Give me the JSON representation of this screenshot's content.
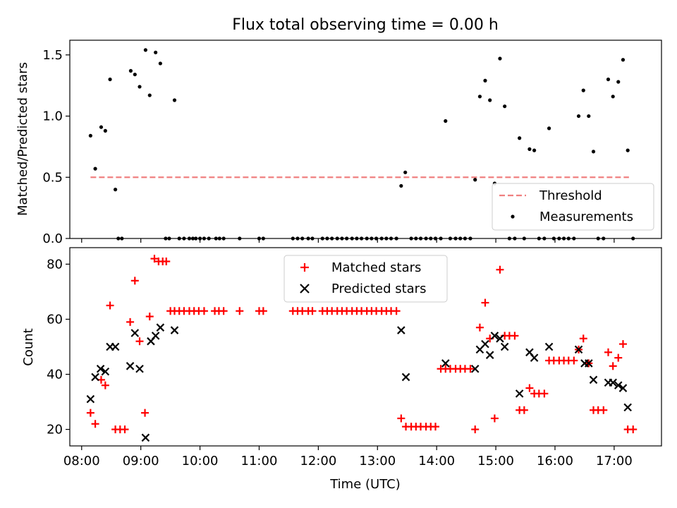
{
  "figure": {
    "title": "Flux total observing time = 0.00 h"
  },
  "chart_data": [
    {
      "type": "scatter",
      "panel": "top",
      "ylabel": "Matched/Predicted stars",
      "xlabel": "",
      "xlim": [
        7.8,
        17.8
      ],
      "ylim": [
        0,
        1.62
      ],
      "yticks": [
        0.0,
        0.5,
        1.0,
        1.5
      ],
      "ytick_labels": [
        "0.0",
        "0.5",
        "1.0",
        "1.5"
      ],
      "xticks": [
        8,
        9,
        10,
        11,
        12,
        13,
        14,
        15,
        16,
        17
      ],
      "grid": false,
      "legend_position": "lower-right",
      "legend": [
        {
          "label": "Threshold",
          "style": "dashed-line",
          "color": "#f08080"
        },
        {
          "label": "Measurements",
          "style": "dot",
          "color": "#000000"
        }
      ],
      "threshold": {
        "x": [
          8.15,
          17.25
        ],
        "y": 0.5,
        "color": "#f08080"
      },
      "series": [
        {
          "name": "Measurements",
          "color": "#000000",
          "marker": "dot",
          "x": [
            8.15,
            8.23,
            8.33,
            8.4,
            8.48,
            8.57,
            8.62,
            8.68,
            8.83,
            8.9,
            8.98,
            9.08,
            9.15,
            9.25,
            9.33,
            9.42,
            9.48,
            9.57,
            9.65,
            9.73,
            9.82,
            9.88,
            9.93,
            10.0,
            10.07,
            10.15,
            10.27,
            10.33,
            10.4,
            10.67,
            11.0,
            11.07,
            11.57,
            11.65,
            11.73,
            11.83,
            11.9,
            12.07,
            12.15,
            12.23,
            12.32,
            12.4,
            12.48,
            12.57,
            12.65,
            12.73,
            12.82,
            12.9,
            12.98,
            13.07,
            13.15,
            13.23,
            13.32,
            13.4,
            13.47,
            13.57,
            13.65,
            13.73,
            13.82,
            13.9,
            13.98,
            14.07,
            14.15,
            14.23,
            14.32,
            14.4,
            14.48,
            14.57,
            14.65,
            14.73,
            14.82,
            14.9,
            14.98,
            15.07,
            15.15,
            15.23,
            15.32,
            15.4,
            15.48,
            15.57,
            15.65,
            15.73,
            15.82,
            15.9,
            15.98,
            16.07,
            16.15,
            16.23,
            16.32,
            16.4,
            16.48,
            16.57,
            16.65,
            16.73,
            16.82,
            16.9,
            16.98,
            17.07,
            17.15,
            17.23,
            17.32
          ],
          "y": [
            0.84,
            0.57,
            0.91,
            0.88,
            1.3,
            0.4,
            0.0,
            0.0,
            1.37,
            1.34,
            1.24,
            1.54,
            1.17,
            1.52,
            1.43,
            0.0,
            0.0,
            1.13,
            0.0,
            0.0,
            0.0,
            0.0,
            0.0,
            0.0,
            0.0,
            0.0,
            0.0,
            0.0,
            0.0,
            0.0,
            0.0,
            0.0,
            0.0,
            0.0,
            0.0,
            0.0,
            0.0,
            0.0,
            0.0,
            0.0,
            0.0,
            0.0,
            0.0,
            0.0,
            0.0,
            0.0,
            0.0,
            0.0,
            0.0,
            0.0,
            0.0,
            0.0,
            0.0,
            0.43,
            0.54,
            0.0,
            0.0,
            0.0,
            0.0,
            0.0,
            0.0,
            0.0,
            0.96,
            0.0,
            0.0,
            0.0,
            0.0,
            0.0,
            0.48,
            1.16,
            1.29,
            1.13,
            0.45,
            1.47,
            1.08,
            0.0,
            0.0,
            0.82,
            0.0,
            0.73,
            0.72,
            0.0,
            0.0,
            0.9,
            0.0,
            0.0,
            0.0,
            0.0,
            0.0,
            1.0,
            1.21,
            1.0,
            0.71,
            0.0,
            0.0,
            1.3,
            1.16,
            1.28,
            1.46,
            0.72,
            0.0
          ]
        }
      ]
    },
    {
      "type": "scatter",
      "panel": "bottom",
      "xlabel": "Time (UTC)",
      "ylabel": "Count",
      "xlim": [
        7.8,
        17.8
      ],
      "ylim": [
        14,
        86
      ],
      "yticks": [
        20,
        40,
        60,
        80
      ],
      "ytick_labels": [
        "20",
        "40",
        "60",
        "80"
      ],
      "xticks": [
        8,
        9,
        10,
        11,
        12,
        13,
        14,
        15,
        16,
        17
      ],
      "xtick_labels": [
        "08:00",
        "09:00",
        "10:00",
        "11:00",
        "12:00",
        "13:00",
        "14:00",
        "15:00",
        "16:00",
        "17:00"
      ],
      "grid": false,
      "legend_position": "top-center",
      "series": [
        {
          "name": "Matched stars",
          "color": "#ff0000",
          "marker": "plus",
          "x": [
            8.15,
            8.23,
            8.33,
            8.4,
            8.48,
            8.57,
            8.65,
            8.73,
            8.82,
            8.9,
            8.98,
            9.07,
            9.15,
            9.23,
            9.3,
            9.37,
            9.43,
            9.5,
            9.57,
            9.65,
            9.73,
            9.82,
            9.9,
            9.98,
            10.07,
            10.25,
            10.32,
            10.4,
            10.67,
            11.0,
            11.07,
            11.57,
            11.65,
            11.73,
            11.83,
            11.9,
            12.07,
            12.15,
            12.23,
            12.32,
            12.4,
            12.48,
            12.57,
            12.65,
            12.73,
            12.82,
            12.9,
            12.98,
            13.07,
            13.15,
            13.23,
            13.32,
            13.4,
            13.48,
            13.57,
            13.65,
            13.73,
            13.82,
            13.9,
            13.98,
            14.07,
            14.15,
            14.23,
            14.32,
            14.4,
            14.48,
            14.57,
            14.65,
            14.73,
            14.82,
            14.9,
            14.98,
            15.07,
            15.15,
            15.23,
            15.32,
            15.4,
            15.48,
            15.57,
            15.65,
            15.73,
            15.82,
            15.9,
            15.98,
            16.07,
            16.15,
            16.23,
            16.32,
            16.4,
            16.48,
            16.57,
            16.65,
            16.73,
            16.82,
            16.9,
            16.98,
            17.07,
            17.15,
            17.23,
            17.32
          ],
          "y": [
            26,
            22,
            38,
            36,
            65,
            20,
            20,
            20,
            59,
            74,
            52,
            26,
            61,
            82,
            81,
            81,
            81,
            63,
            63,
            63,
            63,
            63,
            63,
            63,
            63,
            63,
            63,
            63,
            63,
            63,
            63,
            63,
            63,
            63,
            63,
            63,
            63,
            63,
            63,
            63,
            63,
            63,
            63,
            63,
            63,
            63,
            63,
            63,
            63,
            63,
            63,
            63,
            24,
            21,
            21,
            21,
            21,
            21,
            21,
            21,
            42,
            42,
            42,
            42,
            42,
            42,
            42,
            20,
            57,
            66,
            53,
            24,
            78,
            54,
            54,
            54,
            27,
            27,
            35,
            33,
            33,
            33,
            45,
            45,
            45,
            45,
            45,
            45,
            49,
            53,
            44,
            27,
            27,
            27,
            48,
            43,
            46,
            51,
            20,
            20
          ]
        },
        {
          "name": "Predicted stars",
          "color": "#000000",
          "marker": "x",
          "x": [
            8.15,
            8.23,
            8.32,
            8.4,
            8.48,
            8.57,
            8.82,
            8.9,
            8.98,
            9.08,
            9.17,
            9.25,
            9.33,
            9.57,
            13.4,
            13.48,
            14.15,
            14.65,
            14.73,
            14.82,
            14.9,
            14.98,
            15.07,
            15.15,
            15.4,
            15.57,
            15.65,
            15.9,
            16.4,
            16.5,
            16.57,
            16.65,
            16.9,
            16.98,
            17.07,
            17.15,
            17.23
          ],
          "y": [
            31,
            39,
            42,
            41,
            50,
            50,
            43,
            55,
            42,
            17,
            52,
            54,
            57,
            56,
            56,
            39,
            44,
            42,
            49,
            51,
            47,
            54,
            53,
            50,
            33,
            48,
            46,
            50,
            49,
            44,
            44,
            38,
            37,
            37,
            36,
            35,
            28
          ]
        }
      ]
    }
  ]
}
